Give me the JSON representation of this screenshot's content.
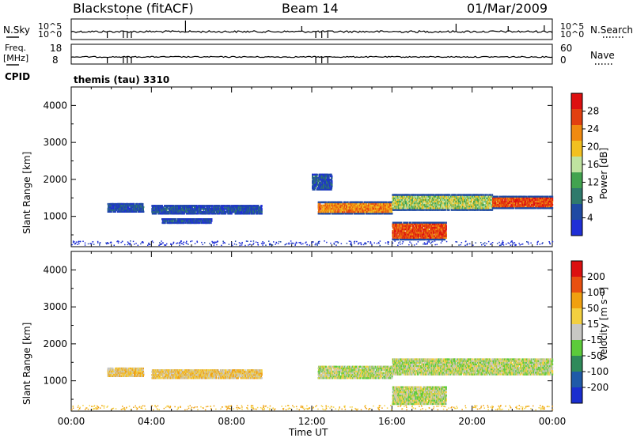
{
  "header": {
    "station": "Blackstone (fitACF)",
    "beam": "Beam 14",
    "date": "01/Mar/2009"
  },
  "colors": {
    "power_scale": [
      "#1f2fd6",
      "#1f4aa3",
      "#2f7a6c",
      "#42a34f",
      "#bfe3a0",
      "#f2c020",
      "#f08a10",
      "#e24010",
      "#dd1010"
    ],
    "velocity_scale": [
      "#1a2ecf",
      "#1f5aa8",
      "#2f8a5a",
      "#5ccb3a",
      "#c8c8c4",
      "#f3d040",
      "#f0a010",
      "#e85010",
      "#dc1010"
    ],
    "trace": "#000000"
  },
  "chart_data": [
    {
      "type": "line",
      "panel": "noise",
      "left_label": "N.Sky",
      "right_label": "N.Search",
      "left_ticks": [
        "10^5",
        "10^0"
      ],
      "right_ticks": [
        "10^5",
        "10^0"
      ]
    },
    {
      "type": "line",
      "panel": "frequency",
      "left_label_line1": "Freq.",
      "left_label_line2": "[MHz]",
      "right_label": "Nave",
      "left_ticks": [
        "18",
        "8"
      ],
      "right_ticks": [
        "60",
        "0"
      ],
      "cpid_label": "CPID",
      "cpid_value": "themis (tau) 3310"
    },
    {
      "type": "heatmap",
      "panel": "power",
      "ylabel": "Slant Range [km]",
      "yticks": [
        "4000",
        "3000",
        "2000",
        "1000"
      ],
      "ylim": [
        180,
        4500
      ],
      "xlim_hours": [
        0,
        24
      ],
      "colorbar_label": "Power [dB]",
      "colorbar_ticks": [
        "28",
        "24",
        "20",
        "16",
        "12",
        "8",
        "4"
      ],
      "colorbar_range": [
        0,
        32
      ],
      "echo_regions": [
        {
          "start_h": 1.8,
          "end_h": 3.6,
          "min_km": 1150,
          "max_km": 1400,
          "level": 1
        },
        {
          "start_h": 4.0,
          "end_h": 9.5,
          "min_km": 1100,
          "max_km": 1350,
          "level": 1
        },
        {
          "start_h": 4.5,
          "end_h": 7.0,
          "min_km": 850,
          "max_km": 1000,
          "level": 1
        },
        {
          "start_h": 12.0,
          "end_h": 13.0,
          "min_km": 1750,
          "max_km": 2200,
          "level": 1
        },
        {
          "start_h": 12.3,
          "end_h": 16.0,
          "min_km": 1100,
          "max_km": 1450,
          "level": 6
        },
        {
          "start_h": 16.0,
          "end_h": 18.7,
          "min_km": 400,
          "max_km": 900,
          "level": 7
        },
        {
          "start_h": 16.0,
          "end_h": 21.0,
          "min_km": 1200,
          "max_km": 1650,
          "level": 4
        },
        {
          "start_h": 21.0,
          "end_h": 24.0,
          "min_km": 1250,
          "max_km": 1600,
          "level": 7
        }
      ]
    },
    {
      "type": "heatmap",
      "panel": "velocity",
      "ylabel": "Slant Range [km]",
      "yticks": [
        "4000",
        "3000",
        "2000",
        "1000"
      ],
      "ylim": [
        180,
        4500
      ],
      "xlim_hours": [
        0,
        24
      ],
      "xticks": [
        "00:00",
        "04:00",
        "08:00",
        "12:00",
        "16:00",
        "20:00",
        "00:00"
      ],
      "xlabel": "Time UT",
      "colorbar_label": "Velocity [m s⁻¹]",
      "colorbar_ticks": [
        "200",
        "100",
        "50",
        "15",
        "-15",
        "-50",
        "-100",
        "-200"
      ],
      "echo_regions": [
        {
          "start_h": 1.8,
          "end_h": 3.6,
          "min_km": 1150,
          "max_km": 1400,
          "level": 5
        },
        {
          "start_h": 4.0,
          "end_h": 9.5,
          "min_km": 1100,
          "max_km": 1350,
          "level": 5
        },
        {
          "start_h": 12.3,
          "end_h": 16.0,
          "min_km": 1100,
          "max_km": 1450,
          "level": 4
        },
        {
          "start_h": 16.0,
          "end_h": 18.7,
          "min_km": 400,
          "max_km": 900,
          "level": 4
        },
        {
          "start_h": 16.0,
          "end_h": 24.0,
          "min_km": 1200,
          "max_km": 1650,
          "level": 4
        }
      ]
    }
  ]
}
